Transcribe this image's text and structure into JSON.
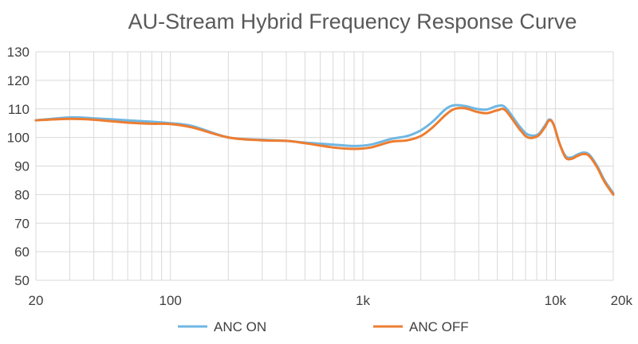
{
  "chart_data": {
    "type": "line",
    "title": "AU-Stream Hybrid Frequency Response Curve",
    "xlabel": "",
    "ylabel": "",
    "x_scale": "log",
    "xlim": [
      20,
      20000
    ],
    "ylim": [
      50,
      130
    ],
    "x_ticks": [
      {
        "value": 20,
        "label": "20"
      },
      {
        "value": 100,
        "label": "100"
      },
      {
        "value": 1000,
        "label": "1k"
      },
      {
        "value": 10000,
        "label": "10k"
      },
      {
        "value": 20000,
        "label": "20k"
      }
    ],
    "y_ticks": [
      50,
      60,
      70,
      80,
      90,
      100,
      110,
      120,
      130
    ],
    "grid": true,
    "legend_position": "bottom",
    "series": [
      {
        "name": "ANC ON",
        "color": "#6fb7e3",
        "points": [
          [
            20,
            106
          ],
          [
            30,
            107
          ],
          [
            40,
            106.7
          ],
          [
            60,
            106
          ],
          [
            80,
            105.5
          ],
          [
            100,
            105
          ],
          [
            130,
            104
          ],
          [
            200,
            100
          ],
          [
            300,
            99.2
          ],
          [
            400,
            98.8
          ],
          [
            500,
            98.2
          ],
          [
            700,
            97.5
          ],
          [
            900,
            97
          ],
          [
            1100,
            97.5
          ],
          [
            1400,
            99.5
          ],
          [
            1700,
            100.5
          ],
          [
            2000,
            102.5
          ],
          [
            2300,
            105.5
          ],
          [
            2700,
            110
          ],
          [
            3000,
            111.3
          ],
          [
            3400,
            111
          ],
          [
            3900,
            110
          ],
          [
            4400,
            109.8
          ],
          [
            5000,
            111
          ],
          [
            5500,
            110.5
          ],
          [
            6500,
            104
          ],
          [
            7200,
            101
          ],
          [
            8100,
            101
          ],
          [
            8800,
            104
          ],
          [
            9300,
            106.3
          ],
          [
            9800,
            104.5
          ],
          [
            10500,
            98
          ],
          [
            11300,
            93.5
          ],
          [
            12100,
            93
          ],
          [
            13000,
            94
          ],
          [
            14000,
            94.7
          ],
          [
            15000,
            94
          ],
          [
            16500,
            90
          ],
          [
            18000,
            85
          ],
          [
            20000,
            80.5
          ]
        ]
      },
      {
        "name": "ANC OFF",
        "color": "#ed7d31",
        "points": [
          [
            20,
            106
          ],
          [
            30,
            106.5
          ],
          [
            40,
            106.2
          ],
          [
            60,
            105.2
          ],
          [
            80,
            104.8
          ],
          [
            100,
            104.7
          ],
          [
            130,
            103.5
          ],
          [
            200,
            100
          ],
          [
            300,
            99
          ],
          [
            400,
            98.8
          ],
          [
            500,
            98
          ],
          [
            700,
            96.5
          ],
          [
            900,
            96
          ],
          [
            1100,
            96.5
          ],
          [
            1400,
            98.5
          ],
          [
            1700,
            99
          ],
          [
            2000,
            100.5
          ],
          [
            2300,
            103.5
          ],
          [
            2700,
            108
          ],
          [
            3000,
            110
          ],
          [
            3400,
            110.2
          ],
          [
            3900,
            109
          ],
          [
            4400,
            108.5
          ],
          [
            5000,
            109.5
          ],
          [
            5500,
            109.5
          ],
          [
            6500,
            103
          ],
          [
            7200,
            100
          ],
          [
            8100,
            100.5
          ],
          [
            8800,
            103.5
          ],
          [
            9300,
            106
          ],
          [
            9800,
            104.5
          ],
          [
            10500,
            98
          ],
          [
            11300,
            93
          ],
          [
            12100,
            92.5
          ],
          [
            13000,
            93.5
          ],
          [
            14000,
            94.2
          ],
          [
            15000,
            93.5
          ],
          [
            16500,
            89.5
          ],
          [
            18000,
            84.5
          ],
          [
            20000,
            80
          ]
        ]
      }
    ]
  }
}
